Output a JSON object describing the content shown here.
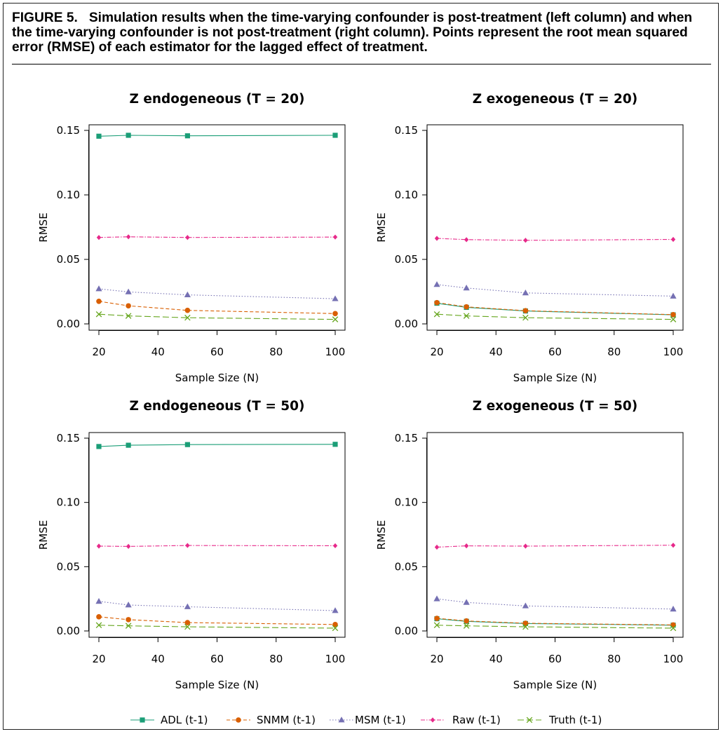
{
  "caption": {
    "label": "FIGURE 5.",
    "text": "Simulation results when the time-varying confounder is post-treatment (left column) and when the time-varying confounder is not post-treatment (right column). Points represent the root mean squared error (RMSE) of each estimator for the lagged effect of treatment."
  },
  "colors": {
    "ADL (t-1)": "#1b9e77",
    "SNMM (t-1)": "#d95f02",
    "MSM (t-1)": "#7570b3",
    "Raw (t-1)": "#e7298a",
    "Truth (t-1)": "#66a61e"
  },
  "chart_data": [
    {
      "type": "line",
      "title": "Z endogeneous (T = 20)",
      "xlabel": "Sample Size (N)",
      "ylabel": "RMSE",
      "x": [
        20,
        30,
        50,
        100
      ],
      "xlim": [
        20,
        100
      ],
      "ylim": [
        0,
        0.15
      ],
      "xticks": [
        20,
        40,
        60,
        80,
        100
      ],
      "yticks": [
        0.0,
        0.05,
        0.1,
        0.15
      ],
      "series": [
        {
          "name": "ADL (t-1)",
          "values": [
            0.1455,
            0.1462,
            0.1458,
            0.1462
          ]
        },
        {
          "name": "SNMM (t-1)",
          "values": [
            0.0175,
            0.014,
            0.0105,
            0.008
          ]
        },
        {
          "name": "MSM (t-1)",
          "values": [
            0.0272,
            0.0248,
            0.0225,
            0.0195
          ]
        },
        {
          "name": "Raw (t-1)",
          "values": [
            0.067,
            0.0675,
            0.067,
            0.0673
          ]
        },
        {
          "name": "Truth (t-1)",
          "values": [
            0.0075,
            0.0062,
            0.0048,
            0.0035
          ]
        }
      ]
    },
    {
      "type": "line",
      "title": "Z exogeneous (T = 20)",
      "xlabel": "Sample Size (N)",
      "ylabel": "RMSE",
      "x": [
        20,
        30,
        50,
        100
      ],
      "xlim": [
        20,
        100
      ],
      "ylim": [
        0,
        0.15
      ],
      "xticks": [
        20,
        40,
        60,
        80,
        100
      ],
      "yticks": [
        0.0,
        0.05,
        0.1,
        0.15
      ],
      "series": [
        {
          "name": "ADL (t-1)",
          "values": [
            0.016,
            0.0128,
            0.01,
            0.007
          ]
        },
        {
          "name": "SNMM (t-1)",
          "values": [
            0.0165,
            0.0132,
            0.0102,
            0.0072
          ]
        },
        {
          "name": "MSM (t-1)",
          "values": [
            0.0305,
            0.0278,
            0.024,
            0.0215
          ]
        },
        {
          "name": "Raw (t-1)",
          "values": [
            0.0663,
            0.0653,
            0.0648,
            0.0655
          ]
        },
        {
          "name": "Truth (t-1)",
          "values": [
            0.0075,
            0.0062,
            0.0048,
            0.0035
          ]
        }
      ]
    },
    {
      "type": "line",
      "title": "Z endogeneous (T = 50)",
      "xlabel": "Sample Size (N)",
      "ylabel": "RMSE",
      "x": [
        20,
        30,
        50,
        100
      ],
      "xlim": [
        20,
        100
      ],
      "ylim": [
        0,
        0.15
      ],
      "xticks": [
        20,
        40,
        60,
        80,
        100
      ],
      "yticks": [
        0.0,
        0.05,
        0.1,
        0.15
      ],
      "series": [
        {
          "name": "ADL (t-1)",
          "values": [
            0.1435,
            0.1445,
            0.145,
            0.1452
          ]
        },
        {
          "name": "SNMM (t-1)",
          "values": [
            0.011,
            0.0088,
            0.0065,
            0.005
          ]
        },
        {
          "name": "MSM (t-1)",
          "values": [
            0.023,
            0.0202,
            0.0188,
            0.0158
          ]
        },
        {
          "name": "Raw (t-1)",
          "values": [
            0.066,
            0.0658,
            0.0665,
            0.0663
          ]
        },
        {
          "name": "Truth (t-1)",
          "values": [
            0.0045,
            0.004,
            0.0032,
            0.0022
          ]
        }
      ]
    },
    {
      "type": "line",
      "title": "Z exogeneous (T = 50)",
      "xlabel": "Sample Size (N)",
      "ylabel": "RMSE",
      "x": [
        20,
        30,
        50,
        100
      ],
      "xlim": [
        20,
        100
      ],
      "ylim": [
        0,
        0.15
      ],
      "xticks": [
        20,
        40,
        60,
        80,
        100
      ],
      "yticks": [
        0.0,
        0.05,
        0.1,
        0.15
      ],
      "series": [
        {
          "name": "ADL (t-1)",
          "values": [
            0.0095,
            0.0075,
            0.0058,
            0.0045
          ]
        },
        {
          "name": "SNMM (t-1)",
          "values": [
            0.0098,
            0.0078,
            0.006,
            0.0047
          ]
        },
        {
          "name": "MSM (t-1)",
          "values": [
            0.025,
            0.0222,
            0.0195,
            0.017
          ]
        },
        {
          "name": "Raw (t-1)",
          "values": [
            0.0652,
            0.0662,
            0.066,
            0.0667
          ]
        },
        {
          "name": "Truth (t-1)",
          "values": [
            0.0045,
            0.004,
            0.0032,
            0.0022
          ]
        }
      ]
    }
  ],
  "legend": {
    "placement": "bottom",
    "items": [
      "ADL (t-1)",
      "SNMM (t-1)",
      "MSM (t-1)",
      "Raw (t-1)",
      "Truth (t-1)"
    ]
  }
}
